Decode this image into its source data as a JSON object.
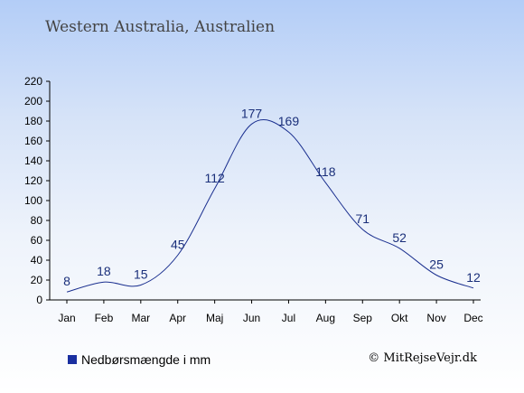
{
  "title": "Western Australia, Australien",
  "legend": {
    "label": "Nedbørsmængde i mm"
  },
  "credit": "© MitRejseVejr.dk",
  "colors": {
    "line": "#1a2f8f",
    "axis": "#000000",
    "legend_swatch": "#1a2fa0"
  },
  "chart_data": {
    "type": "line",
    "categories": [
      "Jan",
      "Feb",
      "Mar",
      "Apr",
      "Maj",
      "Jun",
      "Jul",
      "Aug",
      "Sep",
      "Okt",
      "Nov",
      "Dec"
    ],
    "series": [
      {
        "name": "Nedbørsmængde i mm",
        "values": [
          8,
          18,
          15,
          45,
          112,
          177,
          169,
          118,
          71,
          52,
          25,
          12
        ]
      }
    ],
    "ylim": [
      0,
      220
    ],
    "yticks": [
      0,
      20,
      40,
      60,
      80,
      100,
      120,
      140,
      160,
      180,
      200,
      220
    ],
    "grid": false,
    "legend_position": "bottom-left"
  }
}
